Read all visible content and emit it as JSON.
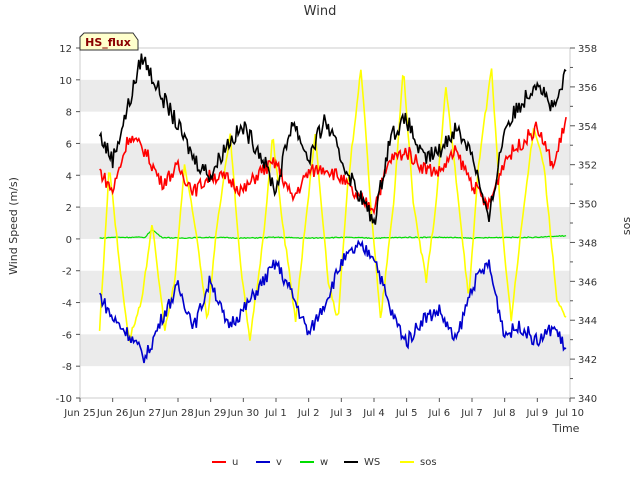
{
  "chart_data": {
    "type": "line",
    "title": "Wind",
    "station_label": "HS_flux",
    "xlabel": "Time",
    "ylabel": "Wind Speed (m/s)",
    "y2label": "sos",
    "ylim": [
      -10,
      12
    ],
    "y2lim": [
      340,
      358
    ],
    "y_ticks": [
      "-10",
      "-8",
      "-6",
      "-4",
      "-2",
      "0",
      "2",
      "4",
      "6",
      "8",
      "10",
      "12"
    ],
    "y2_ticks": [
      "340",
      "342",
      "344",
      "346",
      "348",
      "350",
      "352",
      "354",
      "356",
      "358"
    ],
    "x_ticks": [
      "Jun 25",
      "Jun 26",
      "Jun 27",
      "Jun 28",
      "Jun 29",
      "Jun 30",
      "Jul 1",
      "Jul 2",
      "Jul 3",
      "Jul 4",
      "Jul 5",
      "Jul 6",
      "Jul 7",
      "Jul 8",
      "Jul 9",
      "Jul 10"
    ],
    "xlim_days": [
      0,
      15
    ],
    "grid": "horizontal bands",
    "legend_placement": "bottom",
    "colors": {
      "u": "#ff0000",
      "v": "#0000cc",
      "w": "#00dd00",
      "WS": "#000000",
      "sos": "#ffff00",
      "band": "#ebebeb",
      "label_bg": "#ffffcc",
      "label_text": "#8b0000"
    },
    "series": [
      {
        "name": "u",
        "axis": "left",
        "color": "#ff0000",
        "x": [
          0.6,
          1.0,
          1.5,
          2.0,
          2.5,
          3.0,
          3.5,
          4.0,
          4.5,
          5.0,
          5.5,
          6.0,
          6.5,
          7.0,
          7.5,
          8.0,
          8.5,
          9.0,
          9.5,
          10.0,
          10.5,
          11.0,
          11.5,
          12.0,
          12.5,
          13.0,
          13.5,
          14.0,
          14.5,
          14.9
        ],
        "values": [
          4.3,
          3.0,
          6.5,
          5.5,
          3.5,
          4.5,
          3.0,
          4.0,
          3.8,
          3.0,
          4.2,
          4.8,
          2.5,
          4.2,
          4.5,
          3.8,
          2.5,
          2.0,
          5.0,
          5.5,
          4.5,
          4.2,
          5.5,
          3.5,
          2.0,
          5.0,
          6.0,
          7.0,
          4.5,
          7.8
        ]
      },
      {
        "name": "v",
        "axis": "left",
        "color": "#0000cc",
        "x": [
          0.6,
          1.0,
          1.5,
          2.0,
          2.5,
          3.0,
          3.5,
          4.0,
          4.5,
          5.0,
          5.5,
          6.0,
          6.5,
          7.0,
          7.5,
          8.0,
          8.5,
          9.0,
          9.5,
          10.0,
          10.5,
          11.0,
          11.5,
          12.0,
          12.5,
          13.0,
          13.5,
          14.0,
          14.5,
          14.9
        ],
        "values": [
          -3.5,
          -5.0,
          -6.0,
          -7.5,
          -5.0,
          -3.0,
          -5.5,
          -2.5,
          -5.5,
          -4.5,
          -3.0,
          -1.5,
          -3.5,
          -6.0,
          -4.0,
          -1.5,
          -0.5,
          -1.0,
          -4.5,
          -6.5,
          -5.0,
          -4.5,
          -6.5,
          -3.0,
          -1.5,
          -6.0,
          -5.5,
          -6.5,
          -5.5,
          -7.0
        ]
      },
      {
        "name": "w",
        "axis": "left",
        "color": "#00dd00",
        "x": [
          0.6,
          1.0,
          1.5,
          2.0,
          2.2,
          2.5,
          3.0,
          4.0,
          5.0,
          6.0,
          7.0,
          8.0,
          9.0,
          10.0,
          11.0,
          12.0,
          13.0,
          14.0,
          14.9
        ],
        "values": [
          0.05,
          0.1,
          0.1,
          0.1,
          0.6,
          0.1,
          0.05,
          0.1,
          0.05,
          0.1,
          0.05,
          0.1,
          0.05,
          0.1,
          0.1,
          0.05,
          0.1,
          0.1,
          0.2
        ]
      },
      {
        "name": "WS",
        "axis": "left",
        "color": "#000000",
        "x": [
          0.6,
          1.0,
          1.5,
          1.9,
          2.5,
          2.9,
          3.5,
          4.0,
          4.5,
          5.0,
          5.5,
          6.0,
          6.5,
          7.0,
          7.5,
          8.0,
          8.5,
          9.0,
          9.5,
          10.0,
          10.5,
          11.0,
          11.5,
          12.0,
          12.5,
          13.0,
          13.5,
          14.0,
          14.5,
          14.9
        ],
        "values": [
          6.5,
          5.0,
          8.5,
          11.5,
          9.0,
          7.5,
          5.0,
          4.0,
          6.0,
          7.0,
          5.5,
          3.0,
          7.5,
          5.0,
          7.5,
          5.0,
          3.0,
          1.0,
          6.5,
          7.5,
          5.0,
          5.5,
          7.0,
          5.5,
          1.0,
          7.0,
          8.5,
          10.0,
          8.0,
          10.5
        ]
      },
      {
        "name": "sos",
        "axis": "right",
        "color": "#ffff00",
        "x": [
          0.6,
          0.9,
          1.2,
          1.5,
          1.9,
          2.2,
          2.6,
          2.9,
          3.2,
          3.6,
          3.9,
          4.2,
          4.6,
          4.9,
          5.2,
          5.6,
          5.9,
          6.2,
          6.6,
          6.9,
          7.2,
          7.6,
          7.9,
          8.2,
          8.6,
          8.9,
          9.2,
          9.6,
          9.9,
          10.2,
          10.6,
          10.9,
          11.2,
          11.6,
          11.9,
          12.2,
          12.6,
          12.9,
          13.2,
          13.6,
          13.9,
          14.2,
          14.6,
          14.9
        ],
        "values": [
          343.5,
          352,
          347,
          343,
          345,
          349,
          343.5,
          346,
          352,
          348,
          344,
          349,
          353.5,
          347,
          343,
          348,
          353.5,
          349,
          344,
          349,
          353.5,
          346,
          344,
          351,
          357,
          350,
          344,
          350,
          357,
          350,
          346,
          350,
          356,
          350,
          345,
          352,
          357,
          349,
          344,
          350,
          354,
          352,
          345,
          344
        ]
      }
    ]
  },
  "legend": {
    "items": [
      {
        "label": "u",
        "color": "#ff0000"
      },
      {
        "label": "v",
        "color": "#0000cc"
      },
      {
        "label": "w",
        "color": "#00dd00"
      },
      {
        "label": "WS",
        "color": "#000000"
      },
      {
        "label": "sos",
        "color": "#ffff00"
      }
    ]
  }
}
